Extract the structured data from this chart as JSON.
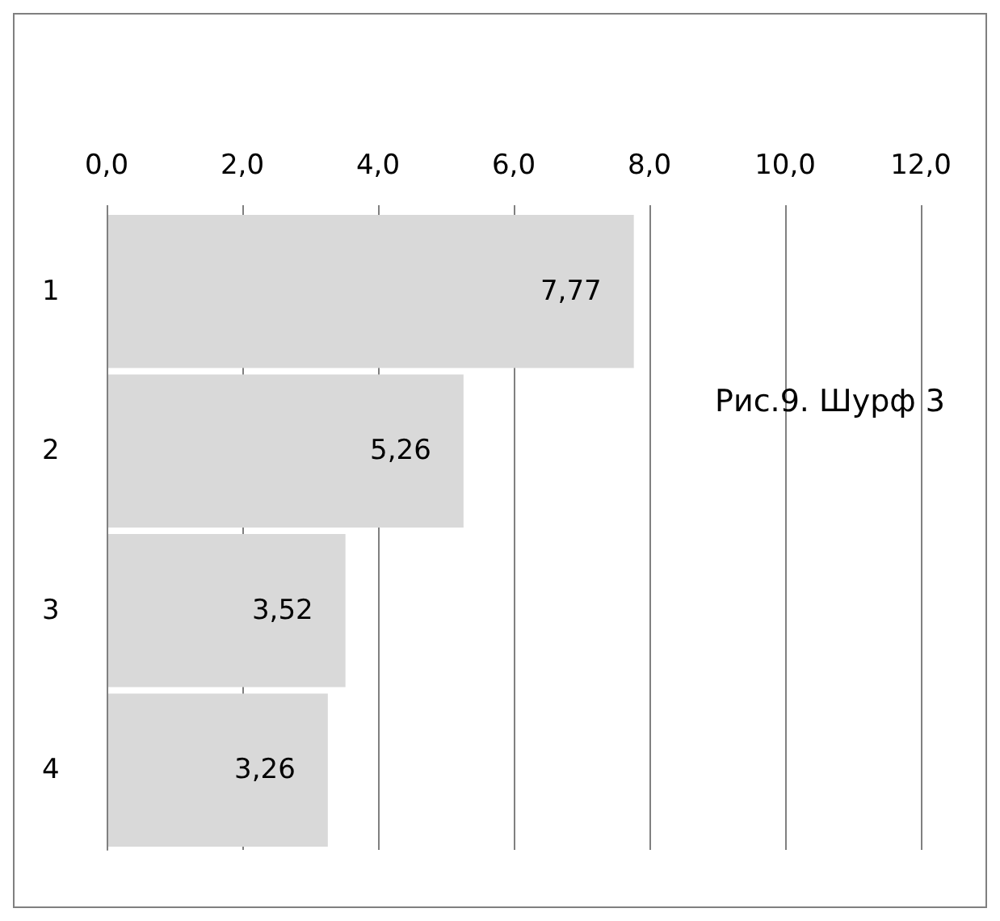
{
  "chart_data": {
    "type": "bar",
    "orientation": "horizontal",
    "title": "Рис.9. Шурф 3",
    "categories": [
      "1",
      "2",
      "3",
      "4"
    ],
    "values": [
      7.77,
      5.26,
      3.52,
      3.26
    ],
    "value_labels": [
      "7,77",
      "5,26",
      "3,52",
      "3,26"
    ],
    "color": "#d9d9d9",
    "xlim": [
      0,
      12
    ],
    "xticks": [
      {
        "value": 0,
        "label": "0,0"
      },
      {
        "value": 2,
        "label": "2,0"
      },
      {
        "value": 4,
        "label": "4,0"
      },
      {
        "value": 6,
        "label": "6,0"
      },
      {
        "value": 8,
        "label": "8,0"
      },
      {
        "value": 10,
        "label": "10,0"
      },
      {
        "value": 12,
        "label": "12,0"
      }
    ],
    "grid": "x"
  }
}
